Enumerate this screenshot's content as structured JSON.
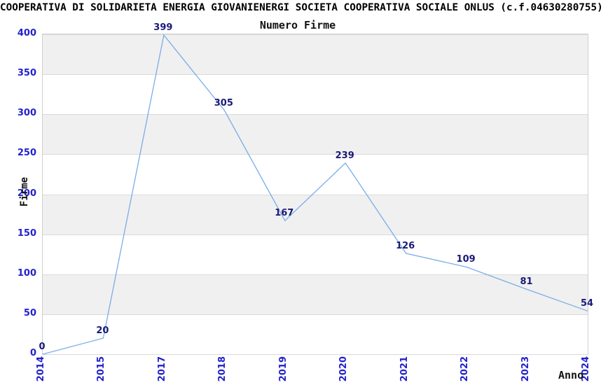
{
  "figure": {
    "title": "COOPERATIVA DI SOLIDARIETA ENERGIA GIOVANIENERGI SOCIETA COOPERATIVA SOCIALE ONLUS (c.f.04630280755)",
    "subtitle": "Numero Firme"
  },
  "chart_data": {
    "type": "line",
    "title": "Numero Firme",
    "xlabel": "Anno",
    "ylabel": "Firme",
    "categories": [
      "2014",
      "2015",
      "2017",
      "2018",
      "2019",
      "2020",
      "2021",
      "2022",
      "2023",
      "2024"
    ],
    "values": [
      0,
      20,
      399,
      305,
      167,
      239,
      126,
      109,
      81,
      54
    ],
    "point_labels": [
      "0",
      "20",
      "399",
      "305",
      "167",
      "239",
      "126",
      "109",
      "81",
      "54"
    ],
    "yticks": [
      0,
      50,
      100,
      150,
      200,
      250,
      300,
      350,
      400
    ],
    "ylim": [
      0,
      400
    ],
    "grid": true,
    "legend_position": "none",
    "band_fill": "alternating horizontal, gray on 350-400 then every other interval",
    "colors": {
      "line": "#7aade8",
      "tick_label": "#2222cc",
      "point_label": "#1a1a78",
      "band": "#f0f0f0",
      "gridline": "#dadada",
      "plot_border": "#d0d0d0",
      "title": "#000000"
    }
  }
}
